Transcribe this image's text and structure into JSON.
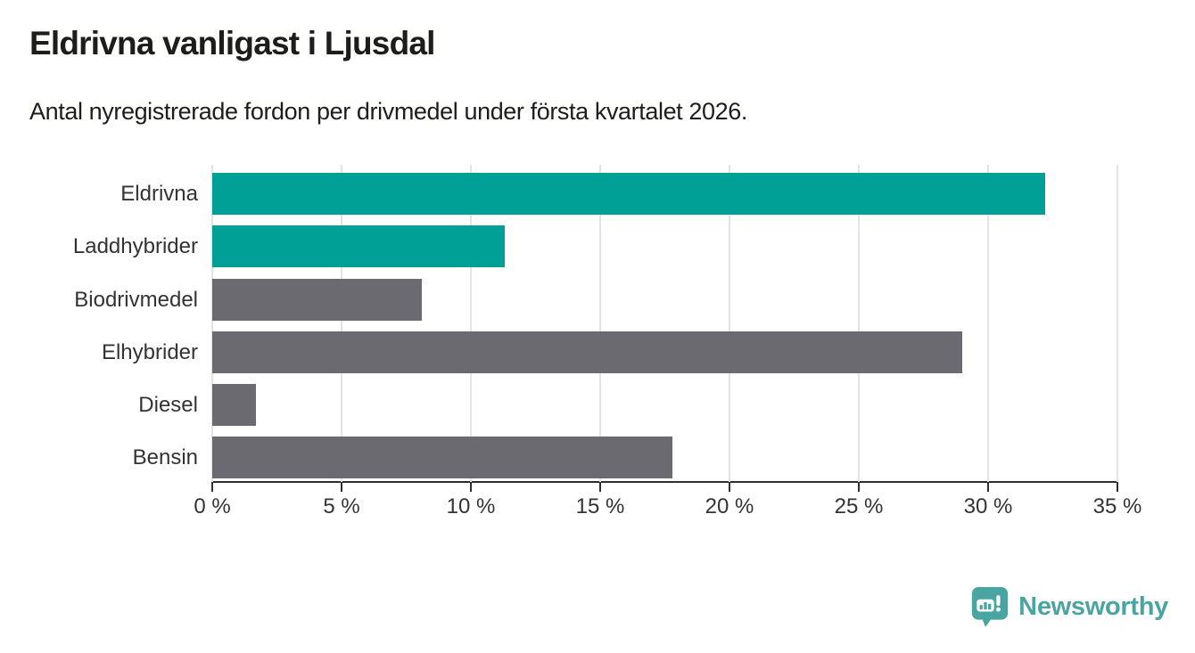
{
  "header": {
    "title": "Eldrivna vanligast i Ljusdal",
    "subtitle": "Antal nyregistrerade fordon per drivmedel under första kvartalet 2026."
  },
  "chart_data": {
    "type": "bar",
    "orientation": "horizontal",
    "title": "Eldrivna vanligast i Ljusdal",
    "subtitle": "Antal nyregistrerade fordon per drivmedel under första kvartalet 2026.",
    "categories": [
      "Eldrivna",
      "Laddhybrider",
      "Biodrivmedel",
      "Elhybrider",
      "Diesel",
      "Bensin"
    ],
    "values": [
      32.2,
      11.3,
      8.1,
      29.0,
      1.7,
      17.8
    ],
    "unit": "%",
    "colors": [
      "#00a096",
      "#00a096",
      "#6a6a70",
      "#6a6a70",
      "#6a6a70",
      "#6a6a70"
    ],
    "xlim": [
      0,
      35
    ],
    "xtick_step": 5,
    "xticklabels": [
      "0 %",
      "5 %",
      "10 %",
      "15 %",
      "20 %",
      "25 %",
      "30 %",
      "35 %"
    ],
    "grid": "vertical",
    "legend": "none",
    "xlabel": "",
    "ylabel": ""
  },
  "footer": {
    "brand": "Newsworthy"
  },
  "colors": {
    "accent_teal": "#00a096",
    "bar_gray": "#6a6a70",
    "logo_teal": "#4aa5a2",
    "axis": "#2e2e2e",
    "gridline": "#e3e3e3",
    "text_dark": "#1d1d1b",
    "text_gray": "#333333"
  }
}
